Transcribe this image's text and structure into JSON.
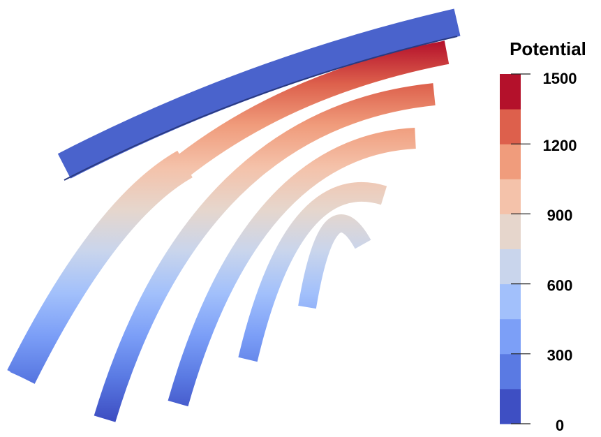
{
  "colorbar": {
    "title": "Potential",
    "lim": [
      0,
      1500
    ],
    "ticks": [
      0,
      300,
      600,
      900,
      1200,
      1500
    ],
    "colors": [
      "#3e4fc3",
      "#5a7ae3",
      "#7c9ff7",
      "#a2c0fb",
      "#c9d5ec",
      "#e6d6cc",
      "#f4c2aa",
      "#f09c7c",
      "#dd604c",
      "#b4112b"
    ]
  }
}
